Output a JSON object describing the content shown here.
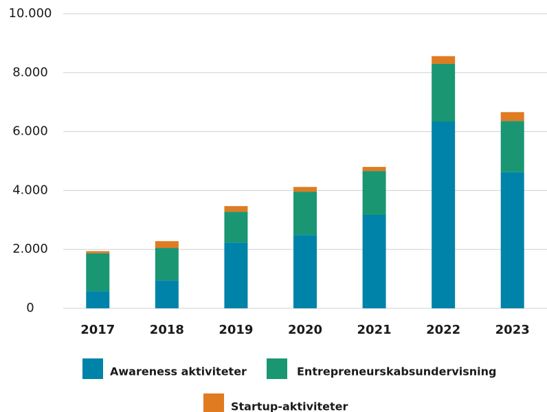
{
  "chart_data": {
    "type": "stacked_bar",
    "categories": [
      "2017",
      "2018",
      "2019",
      "2020",
      "2021",
      "2022",
      "2023"
    ],
    "series": [
      {
        "name": "Awareness aktiviteter",
        "color": "#0083a9",
        "values": [
          580,
          950,
          2230,
          2490,
          3170,
          6340,
          4620
        ]
      },
      {
        "name": "Entrepreneurskabsundervisning",
        "color": "#1a9673",
        "values": [
          1290,
          1100,
          1050,
          1470,
          1490,
          1960,
          1740
        ]
      },
      {
        "name": "Startup-aktiviteter",
        "color": "#e07b22",
        "values": [
          70,
          230,
          190,
          160,
          140,
          260,
          300
        ]
      }
    ],
    "ylim": [
      0,
      10000
    ],
    "yticks": [
      0,
      {
        "value": 2000,
        "label": "2.000"
      },
      {
        "value": 4000,
        "label": "4.000"
      },
      {
        "value": 6000,
        "label": "6.000"
      },
      {
        "value": 8000,
        "label": "8.000"
      },
      {
        "value": 10000,
        "label": "10.000"
      }
    ],
    "grid": true
  }
}
